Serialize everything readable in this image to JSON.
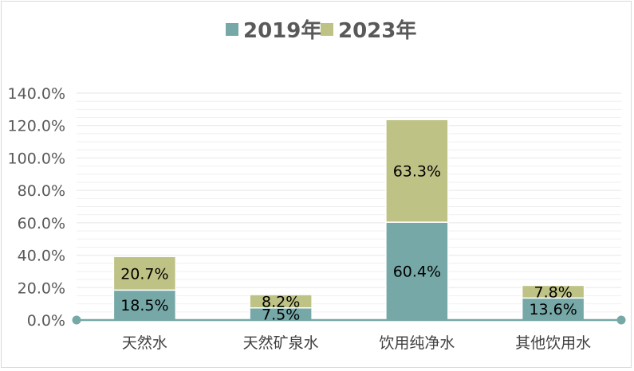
{
  "chart_data": {
    "type": "bar",
    "stacked": true,
    "categories": [
      "天然水",
      "天然矿泉水",
      "饮用纯净水",
      "其他饮用水"
    ],
    "series": [
      {
        "name": "2019年",
        "values": [
          18.5,
          7.5,
          60.4,
          13.6
        ],
        "labels": [
          "18.5%",
          "7.5%",
          "60.4%",
          "13.6%"
        ],
        "color": "#76a8a8"
      },
      {
        "name": "2023年",
        "values": [
          20.7,
          8.2,
          63.3,
          7.8
        ],
        "labels": [
          "20.7%",
          "8.2%",
          "63.3%",
          "7.8%"
        ],
        "color": "#bfc285"
      }
    ],
    "y_ticks": [
      "0.0%",
      "20.0%",
      "40.0%",
      "60.0%",
      "80.0%",
      "100.0%",
      "120.0%",
      "140.0%"
    ],
    "ylim": [
      0,
      140
    ],
    "legend_position": "top",
    "grid": true,
    "axis_color": "#76a8a8",
    "grid_color": "#eeeeee"
  }
}
